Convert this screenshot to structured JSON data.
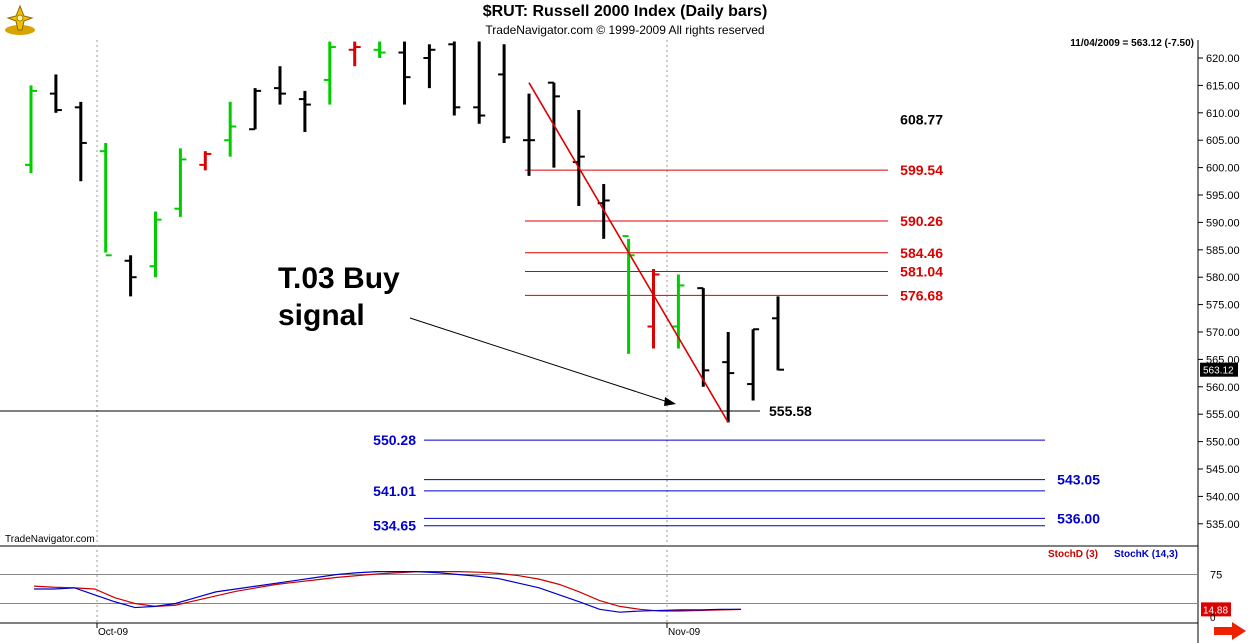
{
  "title": "$RUT:  Russell 2000 Index  (Daily bars)",
  "subtitle": "TradeNavigator.com © 1999-2009 All rights reserved",
  "quote_line": "11/04/2009 = 563.12 (-7.50)",
  "watermark": "TradeNavigator.com",
  "annotation": "T.03 Buy\nsignal",
  "stoch_d_label": "StochD (3)",
  "stoch_k_label": "StochK (14,3)",
  "colors": {
    "up": "#00cc00",
    "down": "#dd0000",
    "neutral": "#000000",
    "resistance": "#dd0000",
    "support": "#0000cc",
    "stochD": "#cc0000",
    "stochK": "#0000cc"
  },
  "chart_data": [
    {
      "type": "ohlc",
      "ylim": [
        531,
        623
      ],
      "y_ticks": [
        535,
        540,
        545,
        550,
        555,
        560,
        565,
        570,
        575,
        580,
        585,
        590,
        595,
        600,
        605,
        610,
        615,
        620
      ],
      "x_labels": [
        "Oct-09",
        "Nov-09"
      ],
      "last_price": "563.12",
      "bars": [
        {
          "o": 600.5,
          "h": 615.0,
          "l": 599.0,
          "c": 614.0,
          "color": "up"
        },
        {
          "o": 613.5,
          "h": 617.0,
          "l": 610.0,
          "c": 610.5,
          "color": "neutral"
        },
        {
          "o": 611.0,
          "h": 612.0,
          "l": 597.5,
          "c": 604.5,
          "color": "neutral"
        },
        {
          "o": 603.0,
          "h": 604.5,
          "l": 584.5,
          "c": 584.0,
          "color": "up"
        },
        {
          "o": 583.0,
          "h": 584.0,
          "l": 576.5,
          "c": 580.0,
          "color": "neutral"
        },
        {
          "o": 582.0,
          "h": 592.0,
          "l": 580.0,
          "c": 590.5,
          "color": "up"
        },
        {
          "o": 592.5,
          "h": 603.5,
          "l": 591.0,
          "c": 601.5,
          "color": "up"
        },
        {
          "o": 600.5,
          "h": 603.0,
          "l": 599.5,
          "c": 602.5,
          "color": "down"
        },
        {
          "o": 605.0,
          "h": 612.0,
          "l": 602.0,
          "c": 607.5,
          "color": "up"
        },
        {
          "o": 607.0,
          "h": 614.5,
          "l": 607.0,
          "c": 614.0,
          "color": "neutral"
        },
        {
          "o": 614.5,
          "h": 618.5,
          "l": 611.5,
          "c": 613.5,
          "color": "neutral"
        },
        {
          "o": 612.5,
          "h": 614.0,
          "l": 606.5,
          "c": 611.5,
          "color": "neutral"
        },
        {
          "o": 616.0,
          "h": 623.0,
          "l": 611.5,
          "c": 622.0,
          "color": "up"
        },
        {
          "o": 621.5,
          "h": 623.0,
          "l": 618.5,
          "c": 622.0,
          "color": "down"
        },
        {
          "o": 621.5,
          "h": 623.0,
          "l": 620.0,
          "c": 621.0,
          "color": "up"
        },
        {
          "o": 621.0,
          "h": 623.0,
          "l": 611.5,
          "c": 616.5,
          "color": "neutral"
        },
        {
          "o": 620.0,
          "h": 622.5,
          "l": 614.5,
          "c": 621.5,
          "color": "neutral"
        },
        {
          "o": 622.5,
          "h": 623.0,
          "l": 609.5,
          "c": 611.0,
          "color": "neutral"
        },
        {
          "o": 611.0,
          "h": 623.0,
          "l": 608.0,
          "c": 609.5,
          "color": "neutral"
        },
        {
          "o": 617.0,
          "h": 622.5,
          "l": 604.5,
          "c": 605.5,
          "color": "neutral"
        },
        {
          "o": 605.0,
          "h": 613.5,
          "l": 598.5,
          "c": 605.0,
          "color": "neutral"
        },
        {
          "o": 615.5,
          "h": 615.5,
          "l": 600.0,
          "c": 613.0,
          "color": "neutral"
        },
        {
          "o": 601.0,
          "h": 610.5,
          "l": 593.0,
          "c": 602.0,
          "color": "neutral"
        },
        {
          "o": 593.5,
          "h": 597.0,
          "l": 587.0,
          "c": 594.0,
          "color": "neutral"
        },
        {
          "o": 587.5,
          "h": 587.0,
          "l": 566.0,
          "c": 584.0,
          "color": "up"
        },
        {
          "o": 571.0,
          "h": 581.5,
          "l": 567.0,
          "c": 580.5,
          "color": "down"
        },
        {
          "o": 571.0,
          "h": 580.5,
          "l": 567.0,
          "c": 578.5,
          "color": "up"
        },
        {
          "o": 578.0,
          "h": 578.0,
          "l": 560.0,
          "c": 563.0,
          "color": "neutral"
        },
        {
          "o": 564.5,
          "h": 570.0,
          "l": 553.5,
          "c": 562.5,
          "color": "neutral"
        },
        {
          "o": 560.5,
          "h": 570.5,
          "l": 557.5,
          "c": 570.5,
          "color": "neutral"
        },
        {
          "o": 572.5,
          "h": 576.5,
          "l": 563.0,
          "c": 563.12,
          "color": "neutral"
        }
      ],
      "trendline": {
        "from_bar": 20,
        "from_price": 615.5,
        "to_bar": 28,
        "to_price": 553.5,
        "color": "resistance"
      },
      "signal_level": {
        "value": 555.58,
        "label": "555.58",
        "color": "neutral"
      },
      "level_labels": [
        {
          "value": 608.77,
          "label": "608.77",
          "color": "neutral",
          "line": false
        },
        {
          "value": 599.54,
          "label": "599.54",
          "color": "resistance",
          "line": true
        },
        {
          "value": 590.26,
          "label": "590.26",
          "color": "resistance",
          "line": true
        },
        {
          "value": 584.46,
          "label": "584.46",
          "color": "resistance",
          "line": true
        },
        {
          "value": 581.04,
          "label": "581.04",
          "color": "resistance",
          "line": true
        },
        {
          "value": 576.68,
          "label": "576.68",
          "color": "resistance",
          "line": true
        },
        {
          "value": 550.28,
          "label": "550.28",
          "color": "support",
          "line": true
        },
        {
          "value": 543.05,
          "label": "543.05",
          "color": "support",
          "line": true
        },
        {
          "value": 541.01,
          "label": "541.01",
          "color": "support",
          "line": true
        },
        {
          "value": 536.0,
          "label": "536.00",
          "color": "support",
          "line": true
        },
        {
          "value": 534.65,
          "label": "534.65",
          "color": "support",
          "line": true
        }
      ]
    },
    {
      "type": "line",
      "title": "StochD (3) / StochK (14,3)",
      "ylim": [
        0,
        100
      ],
      "y_ticks": [
        75
      ],
      "last_value": "14.88",
      "series": [
        {
          "name": "StochD (3)",
          "color": "stochD",
          "values": [
            55,
            53,
            52,
            50,
            35,
            25,
            20,
            22,
            30,
            38,
            46,
            52,
            58,
            62,
            66,
            70,
            73,
            76,
            78,
            80,
            80,
            80,
            79,
            77,
            73,
            67,
            58,
            45,
            30,
            20,
            15,
            12,
            12,
            13,
            14,
            14.88
          ]
        },
        {
          "name": "StochK (14,3)",
          "color": "stochK",
          "values": [
            50,
            50,
            52,
            40,
            28,
            18,
            20,
            25,
            35,
            45,
            50,
            55,
            60,
            65,
            70,
            75,
            78,
            80,
            80,
            80,
            78,
            75,
            72,
            68,
            60,
            52,
            40,
            28,
            15,
            10,
            12,
            13,
            14,
            14,
            15,
            14.88
          ]
        }
      ]
    }
  ]
}
